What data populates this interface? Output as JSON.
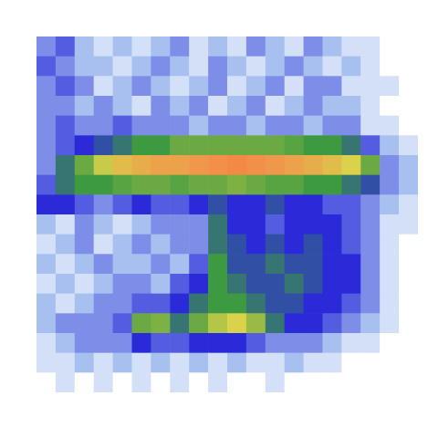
{
  "chart_data": {
    "type": "heatmap",
    "x": [
      0.5,
      1.5,
      2.5,
      3.5,
      4.5,
      5.5,
      6.5,
      7.5,
      8.5,
      9.5,
      10.5,
      11.5,
      12.5,
      13.5,
      14.5,
      15.5,
      16.5,
      17.5,
      18.5,
      19.5
    ],
    "y": [
      17.5,
      16.5,
      15.5,
      14.5,
      13.5,
      12.5,
      11.5,
      10.5,
      9.5,
      8.5,
      7.5,
      6.5,
      5.5,
      4.5,
      3.5,
      2.5,
      1.5,
      0.5
    ],
    "cells": [
      [
        0.3,
        0.35,
        0.25,
        0.2,
        0.25,
        0.2,
        0.25,
        0.3,
        0.2,
        0.25,
        0.2,
        0.3,
        0.25,
        0.2,
        0.3,
        0.25,
        0.2,
        0.2,
        0.15,
        0.15
      ],
      [
        0.35,
        0.3,
        0.25,
        0.25,
        0.2,
        0.25,
        0.3,
        0.25,
        0.2,
        0.3,
        0.25,
        0.2,
        0.25,
        0.3,
        0.25,
        0.2,
        0.25,
        0.2,
        0.15,
        0.1
      ],
      [
        0.3,
        0.35,
        0.3,
        0.2,
        0.25,
        0.3,
        0.25,
        0.2,
        0.25,
        0.3,
        0.2,
        0.25,
        0.3,
        0.2,
        0.3,
        0.3,
        0.2,
        0.2,
        0.2,
        0.1
      ],
      [
        0.3,
        0.3,
        0.25,
        0.3,
        0.25,
        0.2,
        0.3,
        0.25,
        0.3,
        0.2,
        0.25,
        0.3,
        0.2,
        0.25,
        0.3,
        0.25,
        0.25,
        0.2,
        0.15,
        0.1
      ],
      [
        0.3,
        0.35,
        0.3,
        0.3,
        0.35,
        0.3,
        0.3,
        0.3,
        0.25,
        0.3,
        0.3,
        0.25,
        0.3,
        0.3,
        0.25,
        0.3,
        0.3,
        0.2,
        0.2,
        0.15
      ],
      [
        0.3,
        0.35,
        0.4,
        0.45,
        0.5,
        0.55,
        0.55,
        0.6,
        0.6,
        0.6,
        0.6,
        0.6,
        0.6,
        0.58,
        0.55,
        0.55,
        0.5,
        0.35,
        0.25,
        0.2
      ],
      [
        0.3,
        0.5,
        0.6,
        0.7,
        0.78,
        0.82,
        0.85,
        0.85,
        0.88,
        0.9,
        0.92,
        0.9,
        0.88,
        0.85,
        0.82,
        0.78,
        0.72,
        0.6,
        0.3,
        0.25
      ],
      [
        0.35,
        0.5,
        0.55,
        0.55,
        0.58,
        0.6,
        0.6,
        0.58,
        0.6,
        0.6,
        0.62,
        0.6,
        0.58,
        0.58,
        0.55,
        0.55,
        0.5,
        0.45,
        0.3,
        0.25
      ],
      [
        0.4,
        0.4,
        0.35,
        0.3,
        0.35,
        0.4,
        0.35,
        0.35,
        0.4,
        0.45,
        0.4,
        0.4,
        0.45,
        0.4,
        0.4,
        0.35,
        0.35,
        0.3,
        0.25,
        0.2
      ],
      [
        0.25,
        0.2,
        0.3,
        0.25,
        0.2,
        0.25,
        0.3,
        0.3,
        0.3,
        0.5,
        0.4,
        0.4,
        0.35,
        0.4,
        0.4,
        0.4,
        0.35,
        0.3,
        0.2,
        0.2
      ],
      [
        0.2,
        0.25,
        0.3,
        0.2,
        0.25,
        0.3,
        0.25,
        0.3,
        0.3,
        0.5,
        0.45,
        0.4,
        0.45,
        0.4,
        0.45,
        0.4,
        0.35,
        0.3,
        0.2,
        0.15
      ],
      [
        0.25,
        0.2,
        0.25,
        0.3,
        0.25,
        0.25,
        0.3,
        0.25,
        0.35,
        0.55,
        0.45,
        0.45,
        0.5,
        0.45,
        0.45,
        0.4,
        0.4,
        0.3,
        0.2,
        0.15
      ],
      [
        0.2,
        0.25,
        0.2,
        0.25,
        0.3,
        0.3,
        0.25,
        0.35,
        0.4,
        0.55,
        0.5,
        0.45,
        0.45,
        0.5,
        0.45,
        0.4,
        0.4,
        0.3,
        0.2,
        0.15
      ],
      [
        0.25,
        0.2,
        0.25,
        0.3,
        0.3,
        0.35,
        0.35,
        0.4,
        0.5,
        0.55,
        0.55,
        0.5,
        0.45,
        0.45,
        0.4,
        0.4,
        0.35,
        0.3,
        0.2,
        0.15
      ],
      [
        0.25,
        0.3,
        0.3,
        0.3,
        0.35,
        0.6,
        0.62,
        0.5,
        0.6,
        0.68,
        0.72,
        0.65,
        0.5,
        0.4,
        0.4,
        0.35,
        0.3,
        0.25,
        0.2,
        0.15
      ],
      [
        0.2,
        0.25,
        0.3,
        0.3,
        0.3,
        0.4,
        0.35,
        0.35,
        0.4,
        0.4,
        0.4,
        0.35,
        0.3,
        0.3,
        0.3,
        0.25,
        0.2,
        0.2,
        0.15,
        0.15
      ],
      [
        0.2,
        0.2,
        0.25,
        0.2,
        0.25,
        0.2,
        0.25,
        0.2,
        0.25,
        0.2,
        0.25,
        0.2,
        0.2,
        0.25,
        0.2,
        0.2,
        0.15,
        0.15,
        0.1,
        0.1
      ],
      [
        0.15,
        0.2,
        0.15,
        0.2,
        0.15,
        0.2,
        0.15,
        0.2,
        0.15,
        0.2,
        0.15,
        0.15,
        0.2,
        0.15,
        0.15,
        0.1,
        0.1,
        0.1,
        0.1,
        0.1
      ]
    ],
    "xlim": [
      0,
      20
    ],
    "ylim": [
      0,
      18
    ],
    "tick_labels": false
  }
}
